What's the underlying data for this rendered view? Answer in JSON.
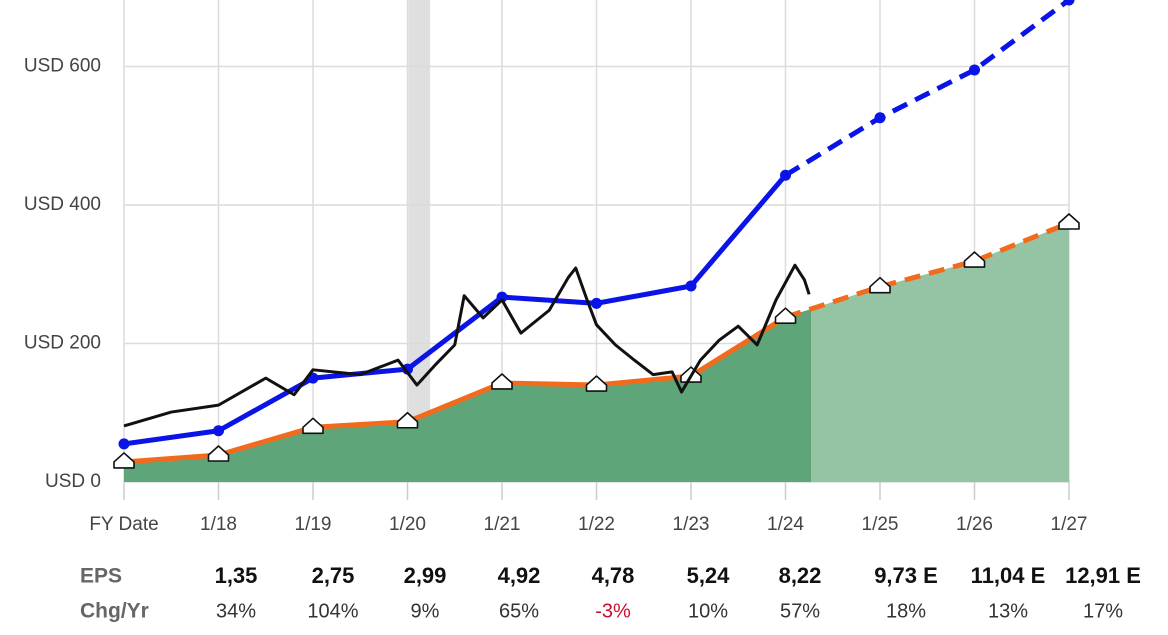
{
  "chart_data": {
    "type": "line",
    "xlim": [
      2017,
      2027
    ],
    "ylim": [
      0,
      696
    ],
    "xticks": [
      {
        "value": 2017,
        "label": "FY Date"
      },
      {
        "value": 2018,
        "label": "1/18"
      },
      {
        "value": 2019,
        "label": "1/19"
      },
      {
        "value": 2020,
        "label": "1/20"
      },
      {
        "value": 2021,
        "label": "1/21"
      },
      {
        "value": 2022,
        "label": "1/22"
      },
      {
        "value": 2023,
        "label": "1/23"
      },
      {
        "value": 2024,
        "label": "1/24"
      },
      {
        "value": 2025,
        "label": "1/25"
      },
      {
        "value": 2026,
        "label": "1/26"
      },
      {
        "value": 2027,
        "label": "1/27"
      }
    ],
    "yticks": [
      {
        "value": 0,
        "label": "USD 0"
      },
      {
        "value": 200,
        "label": "USD 200"
      },
      {
        "value": 400,
        "label": "USD 400"
      },
      {
        "value": 600,
        "label": "USD 600"
      }
    ],
    "grid": true,
    "shaded_region": [
      2020.01,
      2020.24
    ],
    "estimate_start": 2024.27,
    "series": [
      {
        "color": "#0a14e6",
        "marker": "dot",
        "dash_from": 2024,
        "x": [
          2017,
          2018,
          2019,
          2020,
          2021,
          2022,
          2023,
          2024,
          2025,
          2026,
          2027
        ],
        "values": [
          55,
          74,
          150,
          163,
          267,
          258,
          283,
          443,
          526,
          595,
          696
        ]
      },
      {
        "color": "#f26b1d",
        "marker": "house",
        "dash_from": 2024,
        "area_color": "#5ea57a",
        "estimate_area_color": "#95c4a5",
        "x": [
          2017,
          2018,
          2019,
          2020,
          2021,
          2022,
          2023,
          2024,
          2025,
          2026,
          2027
        ],
        "values": [
          29,
          39,
          79,
          87,
          143,
          140,
          153,
          238,
          282,
          319,
          374
        ]
      },
      {
        "color": "#111111",
        "x": [
          2017,
          2017.5,
          2018,
          2018.5,
          2018.8,
          2019,
          2019.5,
          2019.9,
          2020.1,
          2020.3,
          2020.5,
          2020.6,
          2020.8,
          2021,
          2021.2,
          2021.5,
          2021.7,
          2021.78,
          2021.9,
          2022,
          2022.2,
          2022.4,
          2022.6,
          2022.8,
          2022.9,
          2023.1,
          2023.3,
          2023.5,
          2023.7,
          2023.9,
          2024.1,
          2024.2,
          2024.25
        ],
        "values": [
          81,
          101,
          111,
          150,
          126,
          162,
          155,
          176,
          140,
          170,
          198,
          269,
          237,
          263,
          215,
          248,
          295,
          309,
          263,
          227,
          198,
          176,
          155,
          159,
          130,
          176,
          205,
          225,
          198,
          263,
          313,
          292,
          271
        ]
      }
    ]
  },
  "table": {
    "row_labels": [
      "EPS",
      "Chg/Yr"
    ],
    "eps": [
      "1,35",
      "2,75",
      "2,99",
      "4,92",
      "4,78",
      "5,24",
      "8,22",
      "9,73 E",
      "11,04 E",
      "12,91 E"
    ],
    "chg": [
      "34%",
      "104%",
      "9%",
      "65%",
      "-3%",
      "10%",
      "57%",
      "18%",
      "13%",
      "17%"
    ]
  }
}
